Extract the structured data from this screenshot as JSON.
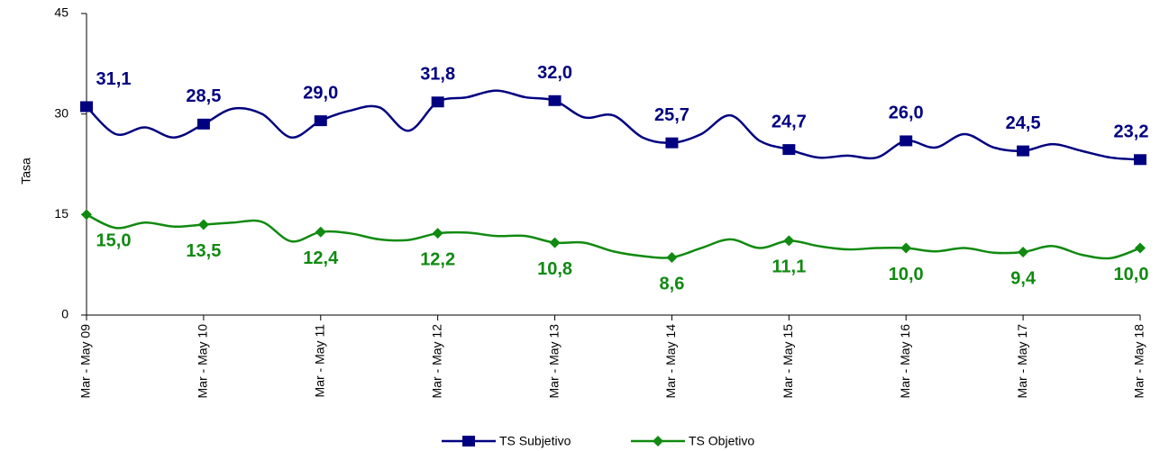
{
  "chart_data": {
    "type": "line",
    "categories": [
      "Mar - May 09",
      null,
      null,
      null,
      "Mar - May 10",
      null,
      null,
      null,
      "Mar - May 11",
      null,
      null,
      null,
      "Mar - May 12",
      null,
      null,
      null,
      "Mar - May 13",
      null,
      null,
      null,
      "Mar - May 14",
      null,
      null,
      null,
      "Mar - May 15",
      null,
      null,
      null,
      "Mar - May 16",
      null,
      null,
      null,
      "Mar - May 17",
      null,
      null,
      null,
      "Mar - May 18"
    ],
    "y_label": "Tasa",
    "ylim": [
      0,
      45
    ],
    "yticks": [
      0,
      15,
      30,
      45
    ],
    "grid": false,
    "legend": "bottom",
    "series": [
      {
        "name": "TS Subjetivo",
        "color": "#000080",
        "values": [
          31.1,
          27,
          28,
          26.5,
          28.5,
          30.8,
          30.0,
          26.5,
          29.0,
          30.5,
          31,
          27.5,
          31.8,
          32.5,
          33.5,
          32.5,
          32.0,
          29.5,
          29.8,
          26.5,
          25.7,
          27,
          29.8,
          26,
          24.7,
          23.5,
          23.8,
          23.5,
          26.0,
          25,
          27,
          25,
          24.5,
          25.5,
          24.5,
          23.5,
          23.2
        ],
        "value_labels": [
          "31,1",
          null,
          null,
          null,
          "28,5",
          null,
          null,
          null,
          "29,0",
          null,
          null,
          null,
          "31,8",
          null,
          null,
          null,
          "32,0",
          null,
          null,
          null,
          "25,7",
          null,
          null,
          null,
          "24,7",
          null,
          null,
          null,
          "26,0",
          null,
          null,
          null,
          "24,5",
          null,
          null,
          null,
          "23,2"
        ]
      },
      {
        "name": "TS Objetivo",
        "color": "#108a10",
        "values": [
          15.0,
          13,
          13.8,
          13.2,
          13.5,
          13.8,
          13.9,
          11,
          12.4,
          12.2,
          11.3,
          11.2,
          12.2,
          12.3,
          11.8,
          11.8,
          10.8,
          10.8,
          9.5,
          8.8,
          8.6,
          10,
          11.3,
          10,
          11.1,
          10.3,
          9.8,
          10,
          10.0,
          9.5,
          10,
          9.3,
          9.4,
          10.3,
          9,
          8.5,
          10.0
        ],
        "value_labels": [
          "15,0",
          null,
          null,
          null,
          "13,5",
          null,
          null,
          null,
          "12,4",
          null,
          null,
          null,
          "12,2",
          null,
          null,
          null,
          "10,8",
          null,
          null,
          null,
          "8,6",
          null,
          null,
          null,
          "11,1",
          null,
          null,
          null,
          "10,0",
          null,
          null,
          null,
          "9,4",
          null,
          null,
          null,
          "10,0"
        ]
      }
    ]
  }
}
